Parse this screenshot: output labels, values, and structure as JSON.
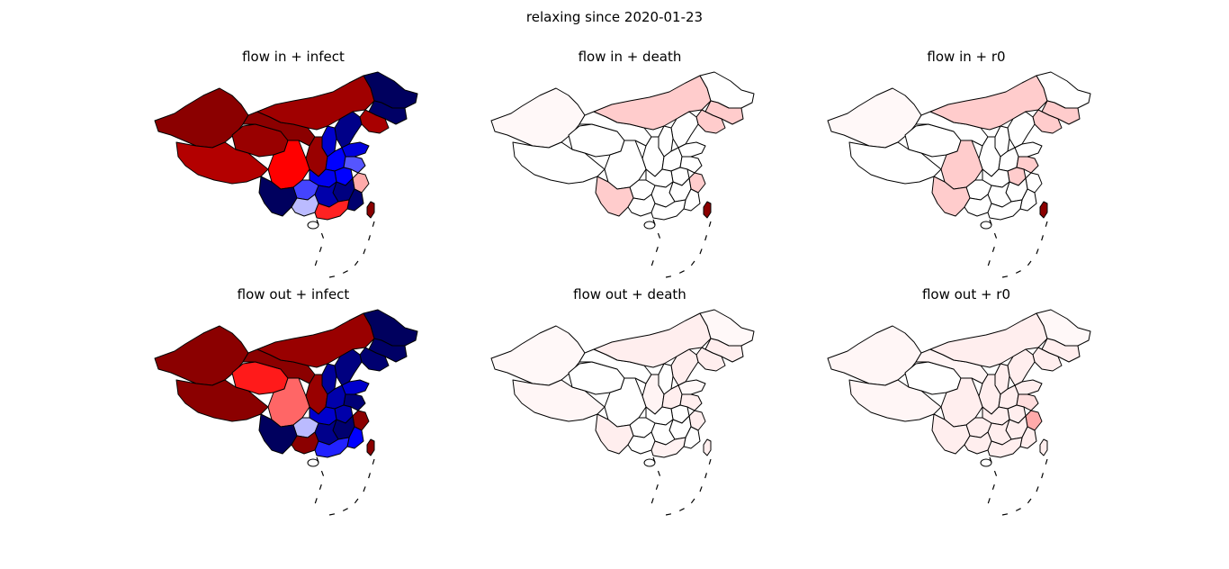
{
  "figure": {
    "title": "relaxing since 2020-01-23"
  },
  "panels": [
    {
      "title": "flow in + infect",
      "fills": {
        "xinjiang": "#8b0000",
        "xizang": "#b30000",
        "qinghai": "#990000",
        "gansu": "#8b0000",
        "neimenggu": "#a00000",
        "heilongjiang": "#00005e",
        "jilin": "#000066",
        "liaoning": "#a80000",
        "sichuan": "#ff0000",
        "yunnan": "#00005e",
        "guizhou": "#4444ff",
        "guangxi": "#bbbbff",
        "guangdong": "#ff2222",
        "hunan": "#0000aa",
        "hubei": "#0000ee",
        "henan": "#0000ff",
        "shaanxi": "#990000",
        "shanxi": "#0000cc",
        "hebei": "#000088",
        "shandong": "#0000dd",
        "jiangsu": "#5555ff",
        "anhui": "#0000ff",
        "zhejiang": "#ffaaaa",
        "jiangxi": "#000080",
        "fujian": "#00006e",
        "taiwan": "#8b0000"
      }
    },
    {
      "title": "flow in + death",
      "fills": {
        "xinjiang": "#fff8f8",
        "xizang": "#ffffff",
        "qinghai": "#ffffff",
        "gansu": "#ffffff",
        "neimenggu": "#ffcccc",
        "heilongjiang": "#ffffff",
        "jilin": "#ffcccc",
        "liaoning": "#ffcccc",
        "sichuan": "#ffffff",
        "yunnan": "#ffcccc",
        "guizhou": "#ffffff",
        "guangxi": "#ffffff",
        "guangdong": "#ffffff",
        "hunan": "#ffffff",
        "hubei": "#ffffff",
        "henan": "#ffffff",
        "shaanxi": "#ffffff",
        "shanxi": "#ffffff",
        "hebei": "#ffffff",
        "shandong": "#ffffff",
        "jiangsu": "#ffffff",
        "anhui": "#ffffff",
        "zhejiang": "#ffcccc",
        "jiangxi": "#ffffff",
        "fujian": "#ffffff",
        "taiwan": "#8b0000"
      }
    },
    {
      "title": "flow in + r0",
      "fills": {
        "xinjiang": "#fff8f8",
        "xizang": "#ffffff",
        "qinghai": "#ffffff",
        "gansu": "#ffffff",
        "neimenggu": "#ffcccc",
        "heilongjiang": "#ffffff",
        "jilin": "#ffcccc",
        "liaoning": "#ffcccc",
        "sichuan": "#ffcccc",
        "yunnan": "#ffcccc",
        "guizhou": "#ffffff",
        "guangxi": "#ffffff",
        "guangdong": "#ffffff",
        "hunan": "#ffffff",
        "hubei": "#ffffff",
        "henan": "#ffffff",
        "shaanxi": "#ffffff",
        "shanxi": "#ffffff",
        "hebei": "#ffffff",
        "shandong": "#ffffff",
        "jiangsu": "#ffcccc",
        "anhui": "#ffcccc",
        "zhejiang": "#ffffff",
        "jiangxi": "#ffffff",
        "fujian": "#ffffff",
        "taiwan": "#8b0000"
      }
    },
    {
      "title": "flow out + infect",
      "fills": {
        "xinjiang": "#8b0000",
        "xizang": "#8b0000",
        "qinghai": "#ff1a1a",
        "gansu": "#8b0000",
        "neimenggu": "#990000",
        "heilongjiang": "#00005e",
        "jilin": "#000066",
        "liaoning": "#000070",
        "sichuan": "#ff6666",
        "yunnan": "#00005e",
        "guizhou": "#bbbbff",
        "guangxi": "#8b0000",
        "guangdong": "#2222ff",
        "hunan": "#00008b",
        "hubei": "#0000cc",
        "henan": "#0000aa",
        "shaanxi": "#990000",
        "shanxi": "#000099",
        "hebei": "#000080",
        "shandong": "#0000cc",
        "jiangsu": "#000077",
        "anhui": "#0000aa",
        "zhejiang": "#8b0000",
        "jiangxi": "#00006e",
        "fujian": "#0000ff",
        "taiwan": "#8b0000"
      }
    },
    {
      "title": "flow out + death",
      "fills": {
        "xinjiang": "#fff8f8",
        "xizang": "#fff6f6",
        "qinghai": "#ffffff",
        "gansu": "#ffffff",
        "neimenggu": "#ffeeee",
        "heilongjiang": "#fff8f8",
        "jilin": "#ffeeee",
        "liaoning": "#ffeeee",
        "sichuan": "#ffffff",
        "yunnan": "#ffeeee",
        "guizhou": "#ffffff",
        "guangxi": "#ffffff",
        "guangdong": "#fff2f2",
        "hunan": "#ffffff",
        "hubei": "#ffffff",
        "henan": "#ffeeee",
        "shaanxi": "#fff4f4",
        "shanxi": "#ffffff",
        "hebei": "#ffeeee",
        "shandong": "#fff8f8",
        "jiangsu": "#ffeeee",
        "anhui": "#ffffff",
        "zhejiang": "#ffeeee",
        "jiangxi": "#ffffff",
        "fujian": "#ffffff",
        "taiwan": "#ffeeee"
      }
    },
    {
      "title": "flow out + r0",
      "fills": {
        "xinjiang": "#fff6f6",
        "xizang": "#fff6f6",
        "qinghai": "#ffffff",
        "gansu": "#fff4f4",
        "neimenggu": "#ffeeee",
        "heilongjiang": "#fff8f8",
        "jilin": "#ffeeee",
        "liaoning": "#ffeeee",
        "sichuan": "#ffeeee",
        "yunnan": "#ffeeee",
        "guizhou": "#ffeeee",
        "guangxi": "#ffeeee",
        "guangdong": "#ffeeee",
        "hunan": "#ffeeee",
        "hubei": "#ffeeee",
        "henan": "#ffeeee",
        "shaanxi": "#ffeeee",
        "shanxi": "#ffeeee",
        "hebei": "#ffeeee",
        "shandong": "#ffeeee",
        "jiangsu": "#ffdddd",
        "anhui": "#ffeeee",
        "zhejiang": "#ffaaaa",
        "jiangxi": "#ffeeee",
        "fujian": "#ffeeee",
        "taiwan": "#ffeeee"
      }
    }
  ]
}
